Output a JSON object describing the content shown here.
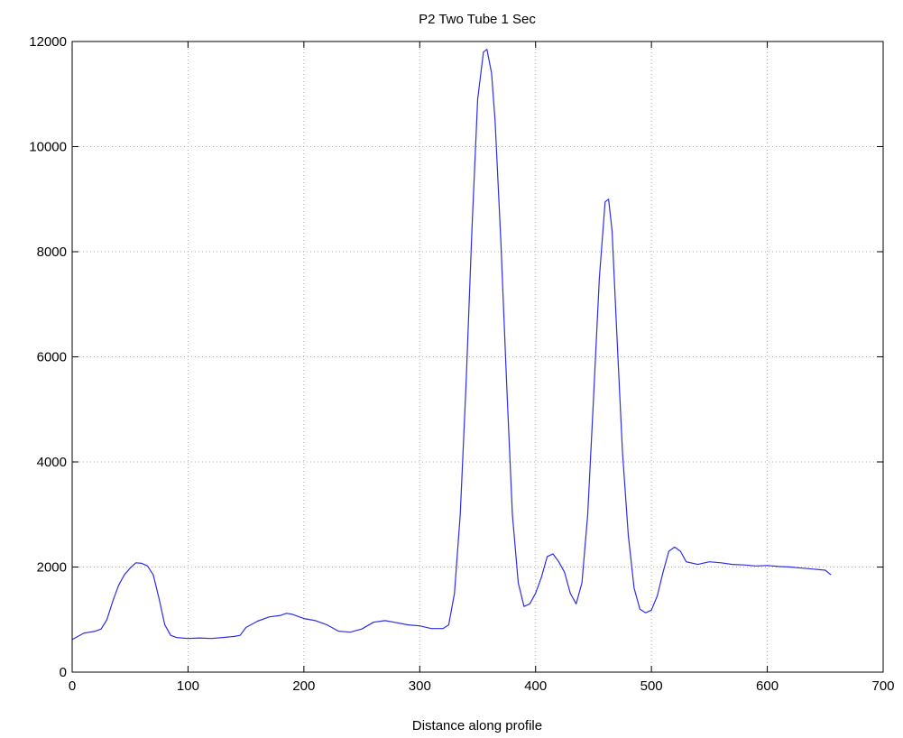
{
  "chart_data": {
    "type": "line",
    "title": "P2 Two Tube 1 Sec",
    "xlabel": "Distance along profile",
    "ylabel": "",
    "xlim": [
      0,
      700
    ],
    "ylim": [
      0,
      12000
    ],
    "xticks": [
      0,
      100,
      200,
      300,
      400,
      500,
      600,
      700
    ],
    "yticks": [
      0,
      2000,
      4000,
      6000,
      8000,
      10000,
      12000
    ],
    "xtick_labels": [
      "0",
      "100",
      "200",
      "300",
      "400",
      "500",
      "600",
      "700"
    ],
    "ytick_labels": [
      "0",
      "2000",
      "4000",
      "6000",
      "8000",
      "10000",
      "12000"
    ],
    "grid": true,
    "grid_style": "dotted",
    "series": [
      {
        "color": "#2e2ee6",
        "points": [
          [
            0,
            620
          ],
          [
            5,
            680
          ],
          [
            10,
            740
          ],
          [
            15,
            760
          ],
          [
            20,
            780
          ],
          [
            25,
            820
          ],
          [
            30,
            1000
          ],
          [
            35,
            1350
          ],
          [
            40,
            1650
          ],
          [
            45,
            1850
          ],
          [
            50,
            1980
          ],
          [
            55,
            2080
          ],
          [
            60,
            2070
          ],
          [
            65,
            2020
          ],
          [
            70,
            1850
          ],
          [
            75,
            1400
          ],
          [
            80,
            900
          ],
          [
            85,
            700
          ],
          [
            90,
            660
          ],
          [
            100,
            640
          ],
          [
            110,
            650
          ],
          [
            120,
            640
          ],
          [
            130,
            660
          ],
          [
            140,
            680
          ],
          [
            145,
            700
          ],
          [
            150,
            850
          ],
          [
            160,
            970
          ],
          [
            170,
            1050
          ],
          [
            180,
            1080
          ],
          [
            185,
            1120
          ],
          [
            190,
            1100
          ],
          [
            200,
            1020
          ],
          [
            210,
            980
          ],
          [
            220,
            900
          ],
          [
            230,
            780
          ],
          [
            240,
            760
          ],
          [
            250,
            820
          ],
          [
            260,
            950
          ],
          [
            270,
            980
          ],
          [
            280,
            940
          ],
          [
            290,
            900
          ],
          [
            300,
            880
          ],
          [
            310,
            830
          ],
          [
            320,
            830
          ],
          [
            325,
            900
          ],
          [
            330,
            1500
          ],
          [
            335,
            3000
          ],
          [
            340,
            5500
          ],
          [
            345,
            8400
          ],
          [
            350,
            10900
          ],
          [
            355,
            11800
          ],
          [
            358,
            11850
          ],
          [
            362,
            11400
          ],
          [
            365,
            10500
          ],
          [
            370,
            8200
          ],
          [
            375,
            5500
          ],
          [
            380,
            3000
          ],
          [
            385,
            1700
          ],
          [
            390,
            1250
          ],
          [
            395,
            1300
          ],
          [
            400,
            1500
          ],
          [
            405,
            1800
          ],
          [
            410,
            2200
          ],
          [
            415,
            2250
          ],
          [
            420,
            2100
          ],
          [
            425,
            1900
          ],
          [
            430,
            1500
          ],
          [
            435,
            1300
          ],
          [
            440,
            1700
          ],
          [
            445,
            3000
          ],
          [
            450,
            5200
          ],
          [
            455,
            7500
          ],
          [
            460,
            8950
          ],
          [
            463,
            9000
          ],
          [
            466,
            8400
          ],
          [
            470,
            6500
          ],
          [
            475,
            4200
          ],
          [
            480,
            2600
          ],
          [
            485,
            1600
          ],
          [
            490,
            1200
          ],
          [
            495,
            1130
          ],
          [
            500,
            1180
          ],
          [
            505,
            1450
          ],
          [
            510,
            1900
          ],
          [
            515,
            2300
          ],
          [
            520,
            2380
          ],
          [
            525,
            2300
          ],
          [
            530,
            2100
          ],
          [
            540,
            2050
          ],
          [
            550,
            2100
          ],
          [
            560,
            2080
          ],
          [
            570,
            2050
          ],
          [
            580,
            2040
          ],
          [
            590,
            2020
          ],
          [
            600,
            2030
          ],
          [
            610,
            2010
          ],
          [
            620,
            2000
          ],
          [
            630,
            1980
          ],
          [
            640,
            1960
          ],
          [
            650,
            1940
          ],
          [
            655,
            1850
          ]
        ]
      }
    ]
  }
}
